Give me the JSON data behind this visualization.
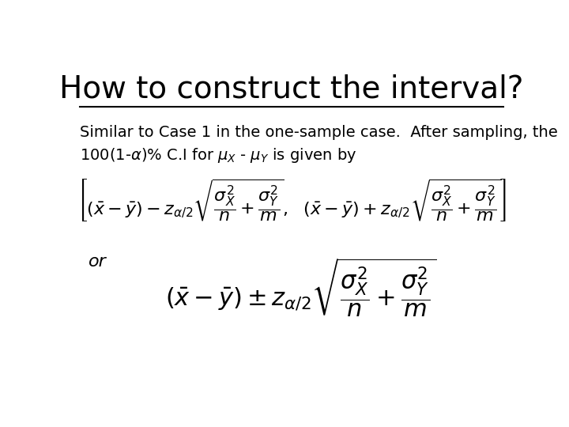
{
  "title": "How to construct the interval?",
  "background_color": "#ffffff",
  "text_color": "#000000",
  "or_label": "or",
  "title_fontsize": 28,
  "body_fontsize": 14,
  "formula_fontsize": 16,
  "formula_large_fontsize": 22
}
